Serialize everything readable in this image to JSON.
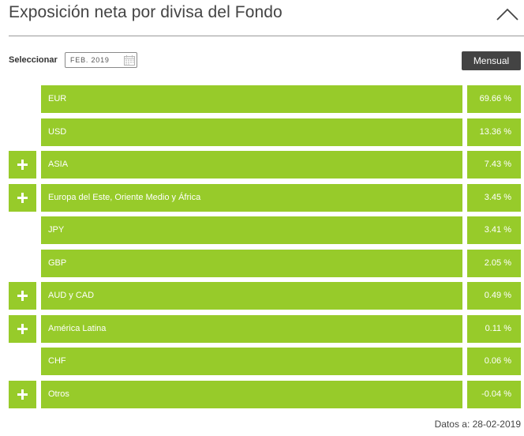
{
  "header": {
    "title": "Exposición neta por divisa del Fondo",
    "collapse_icon": "chevron-up-icon"
  },
  "controls": {
    "select_label": "Seleccionar",
    "date_value": "FEB. 2019",
    "calendar_icon": "calendar-icon",
    "mensual_label": "Mensual"
  },
  "colors": {
    "accent_green": "#97cb2a",
    "button_dark": "#434343"
  },
  "rows": [
    {
      "name": "EUR",
      "value": "69.66 %",
      "expandable": false
    },
    {
      "name": "USD",
      "value": "13.36 %",
      "expandable": false
    },
    {
      "name": "ASIA",
      "value": "7.43 %",
      "expandable": true
    },
    {
      "name": "Europa del Este, Oriente Medio y África",
      "value": "3.45 %",
      "expandable": true
    },
    {
      "name": "JPY",
      "value": "3.41 %",
      "expandable": false
    },
    {
      "name": "GBP",
      "value": "2.05 %",
      "expandable": false
    },
    {
      "name": "AUD y CAD",
      "value": "0.49 %",
      "expandable": true
    },
    {
      "name": "América Latina",
      "value": "0.11 %",
      "expandable": true
    },
    {
      "name": "CHF",
      "value": "0.06 %",
      "expandable": false
    },
    {
      "name": "Otros",
      "value": "-0.04 %",
      "expandable": true
    }
  ],
  "footer": {
    "date_text": "Datos a: 28-02-2019"
  }
}
